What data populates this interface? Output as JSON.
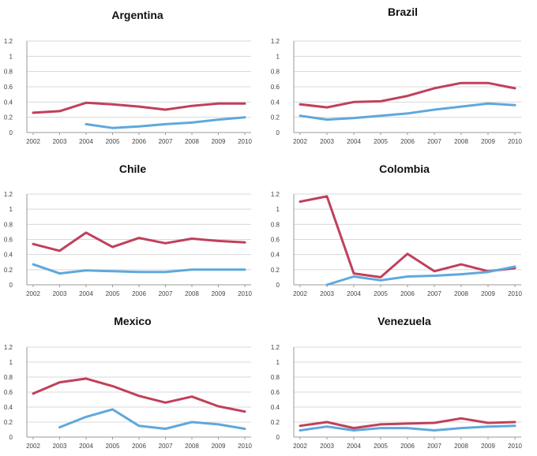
{
  "colors": {
    "series_red": "#c0405a",
    "series_blue": "#5fa8dc"
  },
  "chart_data": [
    {
      "type": "line",
      "title": "Argentina",
      "x": [
        "2002",
        "2003",
        "2004",
        "2005",
        "2006",
        "2007",
        "2008",
        "2009",
        "2010"
      ],
      "yticks": [
        "0",
        "0.2",
        "0.4",
        "0.6",
        "0.8",
        "1",
        "1.2"
      ],
      "ylim": [
        0,
        1.2
      ],
      "grid": true,
      "series": [
        {
          "name": "red",
          "values": [
            0.26,
            0.28,
            0.39,
            0.37,
            0.34,
            0.3,
            0.35,
            0.38,
            0.38
          ]
        },
        {
          "name": "blue",
          "values": [
            null,
            null,
            0.11,
            0.06,
            0.08,
            0.11,
            0.13,
            0.17,
            0.2
          ]
        }
      ]
    },
    {
      "type": "line",
      "title": "Brazil",
      "x": [
        "2002",
        "2003",
        "2004",
        "2005",
        "2006",
        "2007",
        "2008",
        "2009",
        "2010"
      ],
      "yticks": [
        "0",
        "0.2",
        "0.4",
        "0.6",
        "0.8",
        "1",
        "1.2"
      ],
      "ylim": [
        0,
        1.2
      ],
      "grid": true,
      "series": [
        {
          "name": "red",
          "values": [
            0.37,
            0.33,
            0.4,
            0.41,
            0.48,
            0.58,
            0.65,
            0.65,
            0.58
          ]
        },
        {
          "name": "blue",
          "values": [
            0.22,
            0.17,
            0.19,
            0.22,
            0.25,
            0.3,
            0.34,
            0.38,
            0.36
          ]
        }
      ]
    },
    {
      "type": "line",
      "title": "Chile",
      "x": [
        "2002",
        "2003",
        "2004",
        "2005",
        "2006",
        "2007",
        "2008",
        "2009",
        "2010"
      ],
      "yticks": [
        "0",
        "0.2",
        "0.4",
        "0.6",
        "0.8",
        "1",
        "1.2"
      ],
      "ylim": [
        0,
        1.2
      ],
      "grid": true,
      "series": [
        {
          "name": "red",
          "values": [
            0.54,
            0.45,
            0.69,
            0.5,
            0.62,
            0.55,
            0.61,
            0.58,
            0.56
          ]
        },
        {
          "name": "blue",
          "values": [
            0.27,
            0.15,
            0.19,
            0.18,
            0.17,
            0.17,
            0.2,
            0.2,
            0.2
          ]
        }
      ]
    },
    {
      "type": "line",
      "title": "Colombia",
      "x": [
        "2002",
        "2003",
        "2004",
        "2005",
        "2006",
        "2007",
        "2008",
        "2009",
        "2010"
      ],
      "yticks": [
        "0",
        "0.2",
        "0.4",
        "0.6",
        "0.8",
        "1",
        "1.2"
      ],
      "ylim": [
        0,
        1.2
      ],
      "grid": true,
      "series": [
        {
          "name": "red",
          "values": [
            1.1,
            1.17,
            0.15,
            0.1,
            0.41,
            0.18,
            0.27,
            0.18,
            0.22
          ]
        },
        {
          "name": "blue",
          "values": [
            null,
            0.0,
            0.11,
            0.06,
            0.11,
            0.12,
            0.14,
            0.17,
            0.24
          ]
        }
      ]
    },
    {
      "type": "line",
      "title": "Mexico",
      "x": [
        "2002",
        "2003",
        "2004",
        "2005",
        "2006",
        "2007",
        "2008",
        "2009",
        "2010"
      ],
      "yticks": [
        "0",
        "0.2",
        "0.4",
        "0.6",
        "0.8",
        "1",
        "1.2"
      ],
      "ylim": [
        0,
        1.2
      ],
      "grid": true,
      "series": [
        {
          "name": "red",
          "values": [
            0.58,
            0.73,
            0.78,
            0.68,
            0.55,
            0.46,
            0.54,
            0.41,
            0.34
          ]
        },
        {
          "name": "blue",
          "values": [
            null,
            0.13,
            0.27,
            0.37,
            0.15,
            0.11,
            0.2,
            0.17,
            0.11
          ]
        }
      ]
    },
    {
      "type": "line",
      "title": "Venezuela",
      "x": [
        "2002",
        "2003",
        "2004",
        "2005",
        "2006",
        "2007",
        "2008",
        "2009",
        "2010"
      ],
      "yticks": [
        "0",
        "0.2",
        "0.4",
        "0.6",
        "0.8",
        "1",
        "1.2"
      ],
      "ylim": [
        0,
        1.2
      ],
      "grid": true,
      "series": [
        {
          "name": "red",
          "values": [
            0.15,
            0.2,
            0.12,
            0.17,
            0.18,
            0.19,
            0.25,
            0.19,
            0.2
          ]
        },
        {
          "name": "blue",
          "values": [
            0.09,
            0.14,
            0.09,
            0.12,
            0.12,
            0.09,
            0.12,
            0.14,
            0.15
          ]
        }
      ]
    }
  ]
}
